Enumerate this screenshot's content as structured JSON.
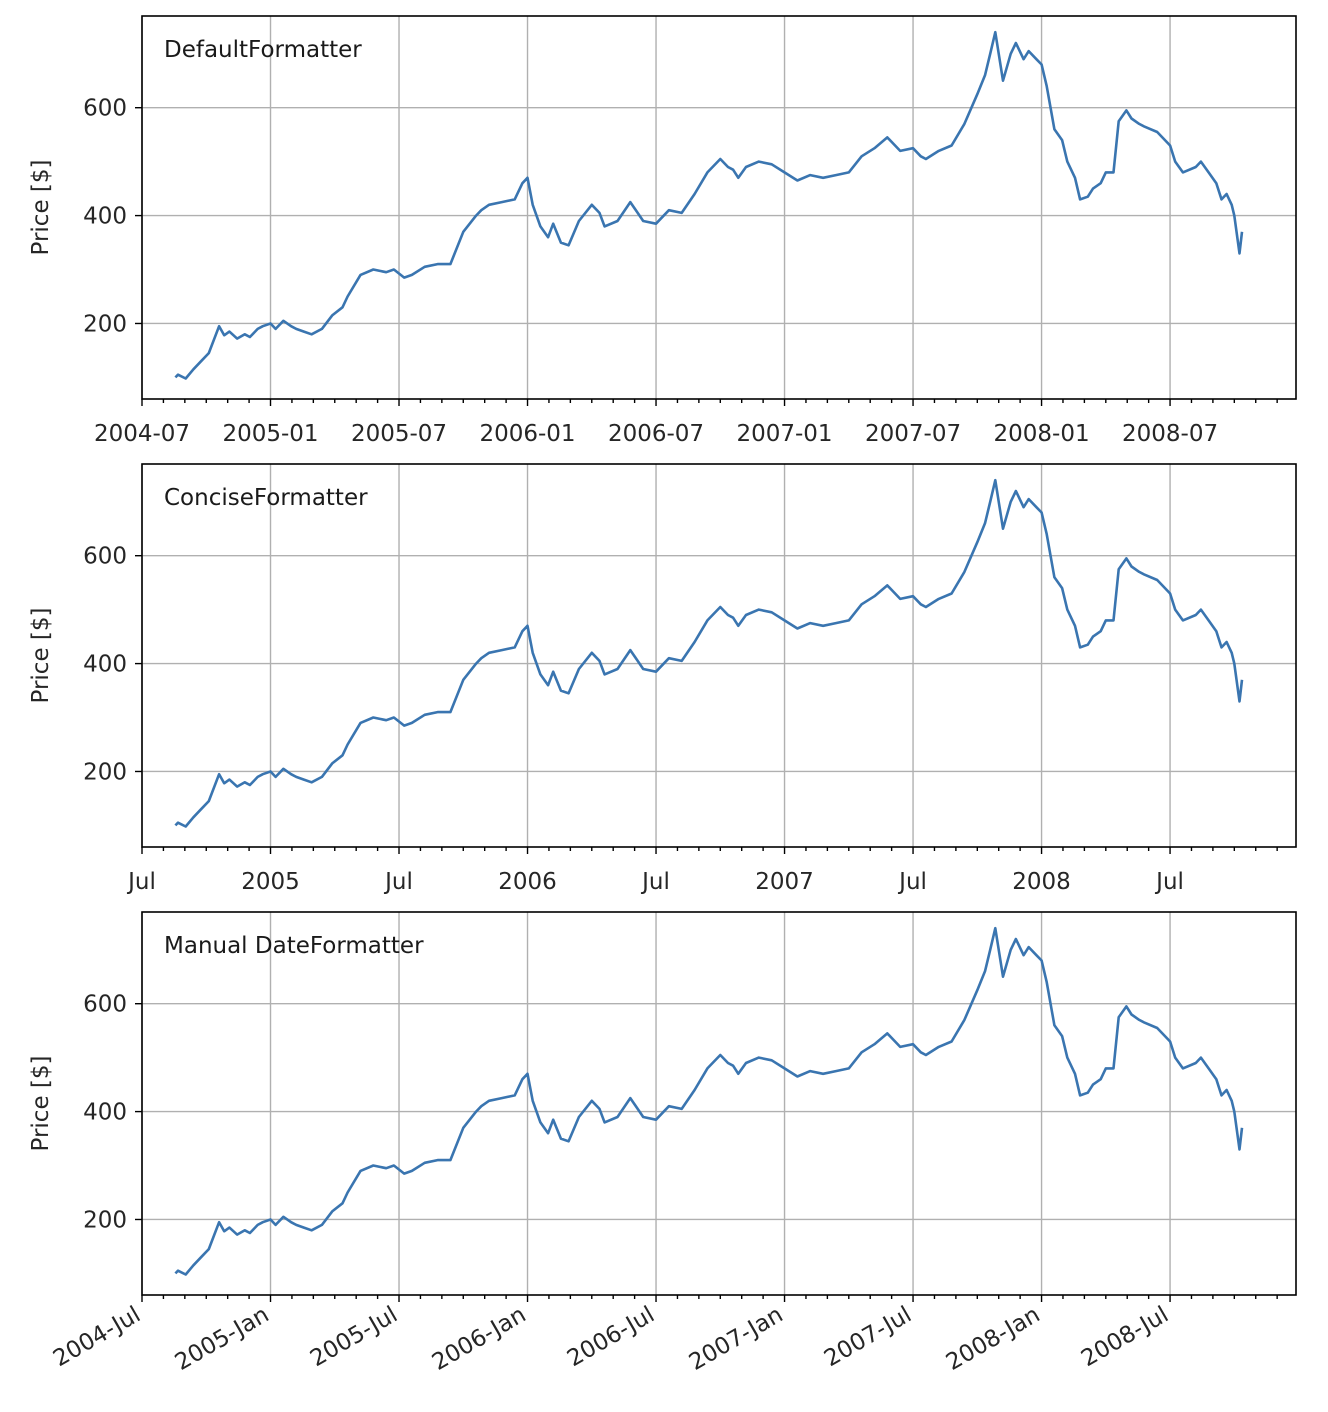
{
  "chart_data": [
    {
      "type": "line",
      "label": "DefaultFormatter",
      "ylabel": "Price [$]",
      "xlim": [
        2004.5,
        2008.99
      ],
      "ylim": [
        60,
        770
      ],
      "yticks": [
        200,
        400,
        600
      ],
      "xticks": [
        2004.5,
        2005.0,
        2005.5,
        2006.0,
        2006.5,
        2007.0,
        2007.5,
        2008.0,
        2008.5
      ],
      "xticklabels": [
        "2004-07",
        "2005-01",
        "2005-07",
        "2006-01",
        "2006-07",
        "2007-01",
        "2007-07",
        "2008-01",
        "2008-07"
      ],
      "xtick_rotation": 0,
      "series": [
        {
          "name": "price",
          "color": "#3a75b0"
        }
      ]
    },
    {
      "type": "line",
      "label": "ConciseFormatter",
      "ylabel": "Price [$]",
      "xlim": [
        2004.5,
        2008.99
      ],
      "ylim": [
        60,
        770
      ],
      "yticks": [
        200,
        400,
        600
      ],
      "xticks": [
        2004.5,
        2005.0,
        2005.5,
        2006.0,
        2006.5,
        2007.0,
        2007.5,
        2008.0,
        2008.5
      ],
      "xticklabels": [
        "Jul",
        "2005",
        "Jul",
        "2006",
        "Jul",
        "2007",
        "Jul",
        "2008",
        "Jul"
      ],
      "xtick_rotation": 0,
      "series": [
        {
          "name": "price",
          "color": "#3a75b0"
        }
      ]
    },
    {
      "type": "line",
      "label": "Manual DateFormatter",
      "ylabel": "Price [$]",
      "xlim": [
        2004.5,
        2008.99
      ],
      "ylim": [
        60,
        770
      ],
      "yticks": [
        200,
        400,
        600
      ],
      "xticks": [
        2004.5,
        2005.0,
        2005.5,
        2006.0,
        2006.5,
        2007.0,
        2007.5,
        2008.0,
        2008.5
      ],
      "xticklabels": [
        "2004-Jul",
        "2005-Jan",
        "2005-Jul",
        "2006-Jan",
        "2006-Jul",
        "2007-Jan",
        "2007-Jul",
        "2008-Jan",
        "2008-Jul"
      ],
      "xtick_rotation": -30,
      "series": [
        {
          "name": "price",
          "color": "#3a75b0"
        }
      ]
    }
  ],
  "price_series": {
    "x": [
      2004.63,
      2004.64,
      2004.67,
      2004.7,
      2004.73,
      2004.76,
      2004.8,
      2004.82,
      2004.84,
      2004.87,
      2004.9,
      2004.92,
      2004.95,
      2004.97,
      2005.0,
      2005.02,
      2005.05,
      2005.08,
      2005.1,
      2005.13,
      2005.16,
      2005.2,
      2005.24,
      2005.28,
      2005.3,
      2005.35,
      2005.4,
      2005.45,
      2005.48,
      2005.52,
      2005.55,
      2005.6,
      2005.65,
      2005.7,
      2005.75,
      2005.8,
      2005.82,
      2005.85,
      2005.9,
      2005.95,
      2005.98,
      2006.0,
      2006.02,
      2006.05,
      2006.08,
      2006.1,
      2006.13,
      2006.16,
      2006.2,
      2006.25,
      2006.28,
      2006.3,
      2006.35,
      2006.4,
      2006.45,
      2006.5,
      2006.55,
      2006.6,
      2006.65,
      2006.7,
      2006.75,
      2006.78,
      2006.8,
      2006.82,
      2006.85,
      2006.9,
      2006.95,
      2007.0,
      2007.05,
      2007.1,
      2007.15,
      2007.2,
      2007.25,
      2007.3,
      2007.35,
      2007.4,
      2007.45,
      2007.5,
      2007.53,
      2007.55,
      2007.6,
      2007.65,
      2007.7,
      2007.75,
      2007.78,
      2007.8,
      2007.82,
      2007.85,
      2007.88,
      2007.9,
      2007.93,
      2007.95,
      2007.98,
      2008.0,
      2008.02,
      2008.05,
      2008.08,
      2008.1,
      2008.13,
      2008.15,
      2008.18,
      2008.2,
      2008.23,
      2008.25,
      2008.28,
      2008.3,
      2008.33,
      2008.35,
      2008.38,
      2008.4,
      2008.45,
      2008.5,
      2008.52,
      2008.55,
      2008.6,
      2008.62,
      2008.65,
      2008.68,
      2008.7,
      2008.72,
      2008.74,
      2008.75,
      2008.77,
      2008.78
    ],
    "y": [
      100,
      105,
      98,
      115,
      130,
      145,
      195,
      178,
      185,
      172,
      180,
      175,
      190,
      195,
      200,
      190,
      205,
      195,
      190,
      185,
      180,
      190,
      215,
      230,
      250,
      290,
      300,
      295,
      300,
      285,
      290,
      305,
      310,
      310,
      370,
      400,
      410,
      420,
      425,
      430,
      460,
      470,
      420,
      380,
      360,
      385,
      350,
      345,
      390,
      420,
      405,
      380,
      390,
      425,
      390,
      385,
      410,
      405,
      440,
      480,
      505,
      490,
      485,
      470,
      490,
      500,
      495,
      480,
      465,
      475,
      470,
      475,
      480,
      510,
      525,
      545,
      520,
      525,
      510,
      505,
      520,
      530,
      570,
      625,
      660,
      700,
      740,
      650,
      700,
      720,
      690,
      705,
      690,
      680,
      640,
      560,
      540,
      500,
      470,
      430,
      435,
      450,
      460,
      480,
      480,
      575,
      595,
      580,
      570,
      565,
      555,
      530,
      500,
      480,
      490,
      500,
      480,
      460,
      430,
      440,
      420,
      400,
      330,
      370
    ]
  }
}
